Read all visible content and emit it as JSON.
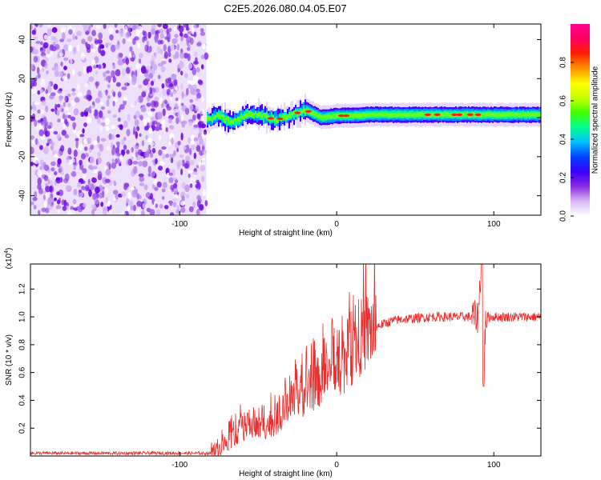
{
  "title": "C2E5.2026.080.04.05.E07",
  "chart_data": [
    {
      "type": "heatmap",
      "panel": "spectrogram",
      "xlabel": "Height of straight line (km)",
      "ylabel": "Frequency (Hz)",
      "xlim": [
        -195,
        130
      ],
      "ylim": [
        -50,
        48
      ],
      "xticks": [
        -100,
        0,
        100
      ],
      "xtick_labels": [
        "-100",
        "0",
        "100"
      ],
      "yticks": [
        -40,
        -20,
        0,
        20,
        40
      ],
      "ytick_labels": [
        "-40",
        "-20",
        "0",
        "20",
        "40"
      ],
      "noise_region_x": [
        -195,
        -83
      ],
      "signal": {
        "x": [
          -83,
          -75,
          -70,
          -65,
          -60,
          -55,
          -50,
          -45,
          -40,
          -35,
          -30,
          -25,
          -20,
          -15,
          -10,
          -5,
          0,
          10,
          20,
          40,
          60,
          80,
          95,
          130
        ],
        "freq": [
          -1,
          1,
          -1.5,
          -2,
          1,
          2,
          1,
          0.5,
          -1,
          -0.5,
          1,
          2.5,
          4,
          2,
          0,
          0.5,
          1,
          1,
          1.5,
          1.5,
          1.5,
          1.5,
          1.5,
          1.5
        ]
      },
      "colorbar": {
        "label": "Normalized spectral amplitude",
        "range": [
          0,
          1
        ],
        "ticks": [
          0.0,
          0.2,
          0.4,
          0.6,
          0.8
        ],
        "tick_labels": [
          "0.0",
          "0.2",
          "0.4",
          "0.6",
          "0.8"
        ],
        "colors": [
          "#ffffff",
          "#d8b8f4",
          "#8a2be2",
          "#3b00ff",
          "#0040ff",
          "#00c0ff",
          "#00ff90",
          "#40ff00",
          "#c8ff00",
          "#ffff00",
          "#ff9000",
          "#ff2000",
          "#ff0060",
          "#ff0090"
        ]
      }
    },
    {
      "type": "line",
      "panel": "snr",
      "xlabel": "Height of straight line (km)",
      "ylabel": "SNR (10 * v/v)",
      "y_multiplier_base": "(x10",
      "y_multiplier_exp": "4",
      "y_multiplier_close": ")",
      "xlim": [
        -195,
        130
      ],
      "ylim": [
        0,
        1.38
      ],
      "xticks": [
        -100,
        0,
        100
      ],
      "xtick_labels": [
        "-100",
        "0",
        "100"
      ],
      "yticks": [
        0.2,
        0.4,
        0.6,
        0.8,
        1.0,
        1.2
      ],
      "ytick_labels": [
        "0.2",
        "0.4",
        "0.6",
        "0.8",
        "1.0",
        "1.2"
      ],
      "line_color": "#e8312f",
      "series": [
        {
          "name": "SNR",
          "x": [
            -195,
            -80,
            -75,
            -70,
            -65,
            -60,
            -55,
            -50,
            -45,
            -40,
            -35,
            -30,
            -25,
            -20,
            -15,
            -10,
            -5,
            0,
            5,
            10,
            15,
            20,
            25,
            30,
            35,
            40,
            50,
            60,
            70,
            80,
            85,
            90,
            92,
            93,
            95,
            100,
            110,
            120,
            130
          ],
          "y": [
            0.02,
            0.02,
            0.05,
            0.1,
            0.15,
            0.2,
            0.22,
            0.2,
            0.22,
            0.25,
            0.3,
            0.35,
            0.42,
            0.45,
            0.5,
            0.55,
            0.58,
            0.62,
            0.68,
            0.75,
            0.85,
            0.9,
            0.93,
            0.95,
            0.97,
            0.98,
            0.99,
            1.0,
            1.0,
            1.0,
            1.0,
            1.0,
            1.38,
            0.5,
            1.0,
            1.0,
            1.0,
            1.0,
            1.0
          ]
        }
      ]
    }
  ]
}
